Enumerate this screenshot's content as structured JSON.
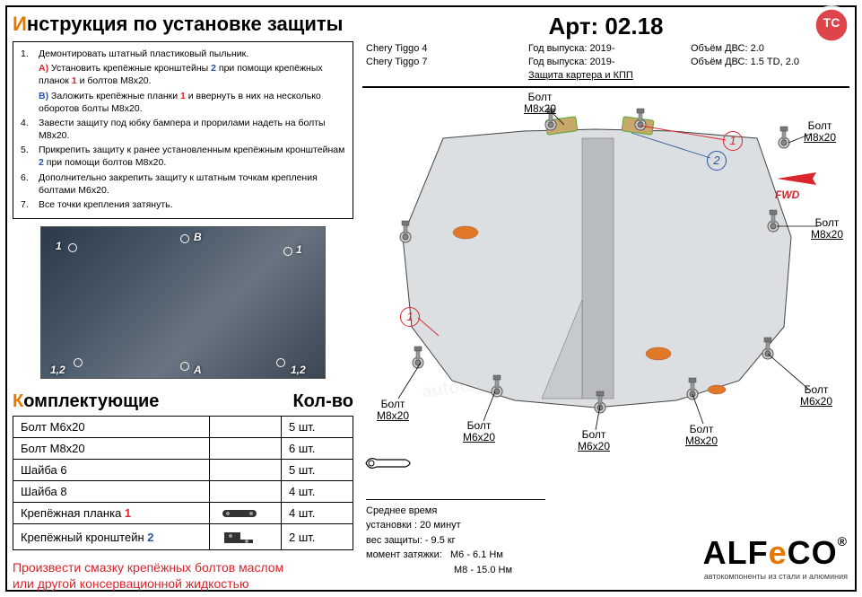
{
  "left": {
    "title_prefix_hl": "И",
    "title_rest": "нструкция по установке защиты",
    "instructions": [
      {
        "n": "1.",
        "t": "Демонтировать штатный пластиковый пыльник."
      },
      {
        "n": "",
        "t": "<span class='cA'>А)</span> Установить крепёжные кронштейны <span class='bluetag'>2</span> при помощи крепёжных планок <span class='redtag'>1</span> и болтов М8x20."
      },
      {
        "n": "",
        "t": "<span class='cB'>В)</span> Заложить крепёжные планки <span class='redtag'>1</span> и ввернуть в них на несколько оборотов болты М8x20."
      },
      {
        "n": "4.",
        "t": "Завести защиту под юбку бампера и прорилами надеть на болты М8x20."
      },
      {
        "n": "5.",
        "t": "Прикрепить защиту к ранее установленным крепёжным кронштейнам <span class='bluetag'>2</span> при помощи болтов М8x20."
      },
      {
        "n": "6.",
        "t": "Дополнительно закрепить защиту к штатным точкам крепления болтами М6x20."
      },
      {
        "n": "7.",
        "t": "Все точки крепления затянуть."
      }
    ],
    "photo_labels": {
      "top_left": "1",
      "top_b": "B",
      "top_right": "1",
      "bot_left": "1,2",
      "bot_mid": "A",
      "bot_right": "1,2"
    },
    "sub_prefix_hl": "К",
    "sub_rest": "омплектующие",
    "sub_right": "Кол-во",
    "parts": [
      {
        "name": "Болт М6x20",
        "icon": "",
        "qty": "5 шт."
      },
      {
        "name": "Болт М8x20",
        "icon": "",
        "qty": "6 шт."
      },
      {
        "name": "Шайба 6",
        "icon": "",
        "qty": "5 шт."
      },
      {
        "name": "Шайба 8",
        "icon": "",
        "qty": "4 шт."
      },
      {
        "name": "Крепёжная планка <span class='redtag'>1</span>",
        "icon": "bar",
        "qty": "4 шт."
      },
      {
        "name": "Крепёжный кронштейн <span class='bluetag'>2</span>",
        "icon": "bracket",
        "qty": "2 шт."
      }
    ],
    "note_line1": "Произвести смазку крепёжных болтов маслом",
    "note_line2": "или другой консервационной жидкостью"
  },
  "header": {
    "art": "Арт: 02.18",
    "col1": [
      "Chery Tiggo 4",
      "Chery Tiggo 7"
    ],
    "col2": [
      "Год выпуска: 2019-",
      "Год выпуска: 2019-",
      "Защита картера и КПП"
    ],
    "col3": [
      "Объём ДВС: 2.0",
      "Объём ДВС: 1.5 TD, 2.0"
    ],
    "badge": "TC",
    "badge_sub": "AutoTC.RU"
  },
  "diagram": {
    "labels": {
      "bolt": "Болт",
      "m8": "М8x20",
      "m6": "М6x20",
      "fwd": "FWD"
    },
    "callouts": {
      "c1": "1",
      "c2": "2"
    },
    "info": {
      "avg_time_l": "Среднее время",
      "avg_time_v": "установки : 20 минут",
      "weight": "вес защиты:   - 9.5 кг",
      "torque_h": "момент затяжки:",
      "torque1": "М6  - 6.1 Нм",
      "torque2": "М8  - 15.0 Нм"
    },
    "logo": {
      "a": "ALF",
      "e": "e",
      "co": "CO",
      "sub": "автокомпоненты из стали и алюминия",
      "reg": "®"
    }
  },
  "style": {
    "accent": "#e67700",
    "red": "#d9252b",
    "blue": "#2a53a0",
    "shield_fill": "#dcdfe2",
    "shield_dark": "#b8bcc0",
    "orange_fill": "#e07828"
  }
}
